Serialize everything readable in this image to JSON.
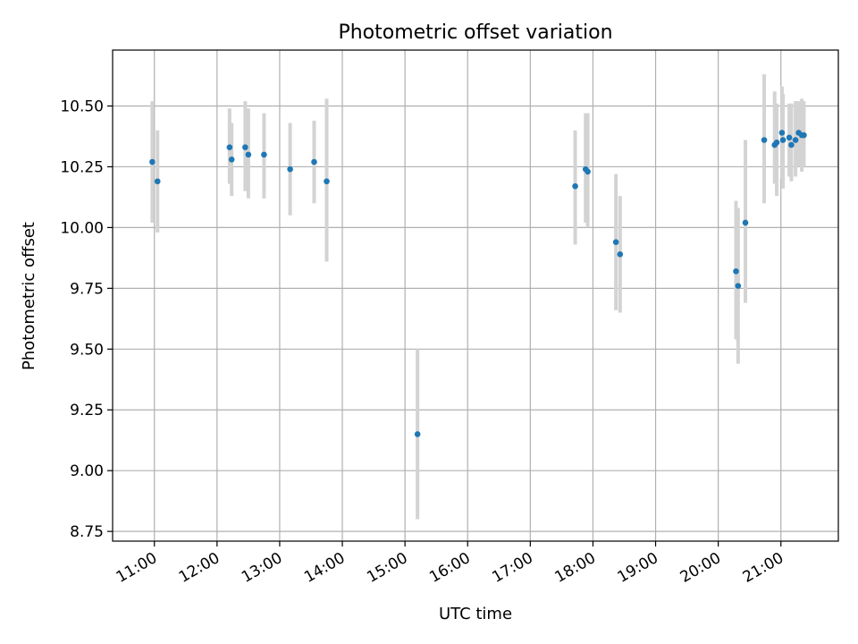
{
  "chart_data": {
    "type": "scatter",
    "title": "Photometric offset variation",
    "xlabel": "UTC time",
    "ylabel": "Photometric offset",
    "xlim": [
      "10:20",
      "21:55"
    ],
    "ylim": [
      8.71,
      10.73
    ],
    "x_ticks": [
      "11:00",
      "12:00",
      "13:00",
      "14:00",
      "15:00",
      "16:00",
      "17:00",
      "18:00",
      "19:00",
      "20:00",
      "21:00"
    ],
    "y_ticks": [
      "8.75",
      "9.00",
      "9.25",
      "9.50",
      "9.75",
      "10.00",
      "10.25",
      "10.50"
    ],
    "grid": true,
    "colors": {
      "point": "#1f77b4",
      "errorbar": "#d3d3d3",
      "grid": "#b0b0b0"
    },
    "series": [
      {
        "points": [
          {
            "x": "10:58",
            "y": 10.27,
            "ylow": 10.02,
            "yhigh": 10.52
          },
          {
            "x": "11:03",
            "y": 10.19,
            "ylow": 9.98,
            "yhigh": 10.4
          },
          {
            "x": "12:12",
            "y": 10.33,
            "ylow": 10.18,
            "yhigh": 10.49
          },
          {
            "x": "12:14",
            "y": 10.28,
            "ylow": 10.13,
            "yhigh": 10.43
          },
          {
            "x": "12:27",
            "y": 10.33,
            "ylow": 10.15,
            "yhigh": 10.52
          },
          {
            "x": "12:30",
            "y": 10.3,
            "ylow": 10.12,
            "yhigh": 10.49
          },
          {
            "x": "12:45",
            "y": 10.3,
            "ylow": 10.12,
            "yhigh": 10.47
          },
          {
            "x": "13:10",
            "y": 10.24,
            "ylow": 10.05,
            "yhigh": 10.43
          },
          {
            "x": "13:33",
            "y": 10.27,
            "ylow": 10.1,
            "yhigh": 10.44
          },
          {
            "x": "13:45",
            "y": 10.19,
            "ylow": 9.86,
            "yhigh": 10.53
          },
          {
            "x": "15:12",
            "y": 9.15,
            "ylow": 8.8,
            "yhigh": 9.5
          },
          {
            "x": "17:43",
            "y": 10.17,
            "ylow": 9.93,
            "yhigh": 10.4
          },
          {
            "x": "17:53",
            "y": 10.24,
            "ylow": 10.02,
            "yhigh": 10.47
          },
          {
            "x": "17:55",
            "y": 10.23,
            "ylow": 10.0,
            "yhigh": 10.47
          },
          {
            "x": "18:22",
            "y": 9.94,
            "ylow": 9.66,
            "yhigh": 10.22
          },
          {
            "x": "18:26",
            "y": 9.89,
            "ylow": 9.65,
            "yhigh": 10.13
          },
          {
            "x": "20:17",
            "y": 9.82,
            "ylow": 9.54,
            "yhigh": 10.11
          },
          {
            "x": "20:19",
            "y": 9.76,
            "ylow": 9.44,
            "yhigh": 10.08
          },
          {
            "x": "20:26",
            "y": 10.02,
            "ylow": 9.69,
            "yhigh": 10.36
          },
          {
            "x": "20:44",
            "y": 10.36,
            "ylow": 10.1,
            "yhigh": 10.63
          },
          {
            "x": "20:54",
            "y": 10.34,
            "ylow": 10.18,
            "yhigh": 10.56
          },
          {
            "x": "20:56",
            "y": 10.35,
            "ylow": 10.13,
            "yhigh": 10.51
          },
          {
            "x": "21:01",
            "y": 10.39,
            "ylow": 10.2,
            "yhigh": 10.58
          },
          {
            "x": "21:02",
            "y": 10.36,
            "ylow": 10.16,
            "yhigh": 10.55
          },
          {
            "x": "21:08",
            "y": 10.37,
            "ylow": 10.21,
            "yhigh": 10.51
          },
          {
            "x": "21:10",
            "y": 10.34,
            "ylow": 10.19,
            "yhigh": 10.51
          },
          {
            "x": "21:14",
            "y": 10.36,
            "ylow": 10.21,
            "yhigh": 10.52
          },
          {
            "x": "21:17",
            "y": 10.39,
            "ylow": 10.25,
            "yhigh": 10.52
          },
          {
            "x": "21:20",
            "y": 10.38,
            "ylow": 10.23,
            "yhigh": 10.53
          },
          {
            "x": "21:22",
            "y": 10.38,
            "ylow": 10.25,
            "yhigh": 10.52
          }
        ]
      }
    ]
  }
}
